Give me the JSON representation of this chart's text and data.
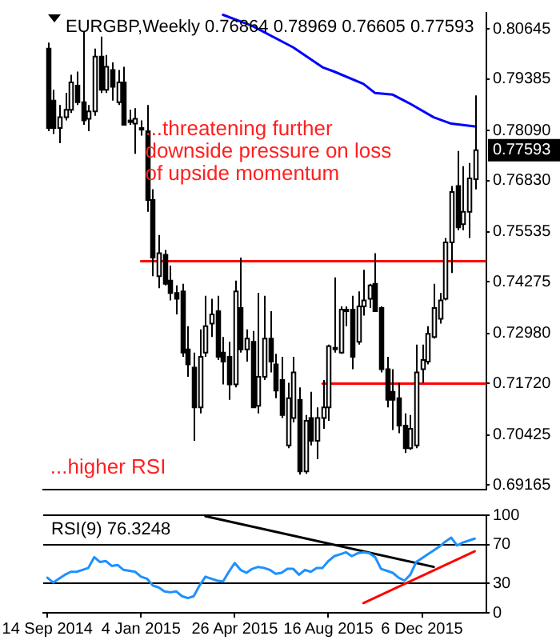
{
  "chart_data": [
    {
      "type": "candlestick",
      "title": "EURGBP,Weekly 0.76864 0.78969 0.76605 0.77593",
      "x": [
        "2014-09-14",
        "2014-09-21",
        "2014-09-28",
        "2014-10-05",
        "2014-10-12",
        "2014-10-19",
        "2014-10-26",
        "2014-11-02",
        "2014-11-09",
        "2014-11-16",
        "2014-11-23",
        "2014-11-30",
        "2014-12-07",
        "2014-12-14",
        "2014-12-21",
        "2014-12-28",
        "2015-01-04",
        "2015-01-11",
        "2015-01-18",
        "2015-01-25",
        "2015-02-01",
        "2015-02-08",
        "2015-02-15",
        "2015-02-22",
        "2015-03-01",
        "2015-03-08",
        "2015-03-15",
        "2015-03-22",
        "2015-03-29",
        "2015-04-05",
        "2015-04-12",
        "2015-04-19",
        "2015-04-26",
        "2015-05-03",
        "2015-05-10",
        "2015-05-17",
        "2015-05-24",
        "2015-05-31",
        "2015-06-07",
        "2015-06-14",
        "2015-06-21",
        "2015-06-28",
        "2015-07-05",
        "2015-07-12",
        "2015-07-19",
        "2015-07-26",
        "2015-08-02",
        "2015-08-09",
        "2015-08-16",
        "2015-08-23",
        "2015-08-30",
        "2015-09-06",
        "2015-09-13",
        "2015-09-20",
        "2015-09-27",
        "2015-10-04",
        "2015-10-11",
        "2015-10-18",
        "2015-10-25",
        "2015-11-01",
        "2015-11-08",
        "2015-11-15",
        "2015-11-22",
        "2015-11-29",
        "2015-12-06",
        "2015-12-13",
        "2015-12-20",
        "2015-12-27",
        "2016-01-03",
        "2016-01-10",
        "2016-01-17",
        "2016-01-24",
        "2016-01-31",
        "2016-02-07"
      ],
      "ohlc": [
        [
          0.8015,
          0.803,
          0.7807,
          0.7815
        ],
        [
          0.7884,
          0.7911,
          0.78,
          0.7815
        ],
        [
          0.7815,
          0.7873,
          0.7777,
          0.7842
        ],
        [
          0.7842,
          0.7903,
          0.7834,
          0.7861
        ],
        [
          0.7861,
          0.7949,
          0.7853,
          0.793
        ],
        [
          0.7922,
          0.7957,
          0.7873,
          0.788
        ],
        [
          0.788,
          0.8057,
          0.7823,
          0.7834
        ],
        [
          0.7838,
          0.7873,
          0.7807,
          0.7857
        ],
        [
          0.7857,
          0.8015,
          0.7846,
          0.7995
        ],
        [
          0.7995,
          0.8045,
          0.7903,
          0.7911
        ],
        [
          0.7911,
          0.7999,
          0.7903,
          0.7969
        ],
        [
          0.7961,
          0.798,
          0.7884,
          0.7919
        ],
        [
          0.788,
          0.7961,
          0.7873,
          0.793
        ],
        [
          0.793,
          0.7969,
          0.7823,
          0.7823
        ],
        [
          0.783,
          0.7861,
          0.7823,
          0.7834
        ],
        [
          0.7826,
          0.7865,
          0.775,
          0.7838
        ],
        [
          0.7815,
          0.7834,
          0.7796,
          0.7811
        ],
        [
          0.7807,
          0.7873,
          0.7604,
          0.7634
        ],
        [
          0.7634,
          0.7661,
          0.7442,
          0.7489
        ],
        [
          0.7442,
          0.7546,
          0.7412,
          0.75
        ],
        [
          0.7496,
          0.7508,
          0.7419,
          0.7423
        ],
        [
          0.7431,
          0.7469,
          0.7381,
          0.74
        ],
        [
          0.74,
          0.7419,
          0.7346,
          0.7385
        ],
        [
          0.7404,
          0.7423,
          0.7239,
          0.725
        ],
        [
          0.7258,
          0.7316,
          0.7189,
          0.722
        ],
        [
          0.7212,
          0.725,
          0.7028,
          0.7112
        ],
        [
          0.7112,
          0.7308,
          0.7097,
          0.7239
        ],
        [
          0.725,
          0.7393,
          0.7239,
          0.7316
        ],
        [
          0.7323,
          0.7385,
          0.7289,
          0.7346
        ],
        [
          0.7354,
          0.7393,
          0.7231,
          0.7239
        ],
        [
          0.725,
          0.7289,
          0.717,
          0.7227
        ],
        [
          0.7239,
          0.7277,
          0.7131,
          0.717
        ],
        [
          0.717,
          0.7431,
          0.7162,
          0.7404
        ],
        [
          0.7362,
          0.7489,
          0.725,
          0.7258
        ],
        [
          0.7258,
          0.7308,
          0.7227,
          0.7285
        ],
        [
          0.7277,
          0.7304,
          0.7112,
          0.7112
        ],
        [
          0.7116,
          0.74,
          0.7097,
          0.7189
        ],
        [
          0.7189,
          0.7393,
          0.7181,
          0.7285
        ],
        [
          0.7285,
          0.7354,
          0.72,
          0.7227
        ],
        [
          0.722,
          0.7247,
          0.7135,
          0.7154
        ],
        [
          0.7181,
          0.7239,
          0.7085,
          0.7093
        ],
        [
          0.7016,
          0.7174,
          0.7009,
          0.7135
        ],
        [
          0.7085,
          0.7239,
          0.7074,
          0.72
        ],
        [
          0.7131,
          0.7162,
          0.6943,
          0.6951
        ],
        [
          0.6951,
          0.7093,
          0.6945,
          0.7078
        ],
        [
          0.7085,
          0.7151,
          0.7016,
          0.7028
        ],
        [
          0.7028,
          0.7112,
          0.6982,
          0.7085
        ],
        [
          0.7085,
          0.7181,
          0.7058,
          0.7112
        ],
        [
          0.7112,
          0.727,
          0.7078,
          0.7266
        ],
        [
          0.7258,
          0.7439,
          0.725,
          0.7262
        ],
        [
          0.725,
          0.7366,
          0.7247,
          0.7358
        ],
        [
          0.7358,
          0.7366,
          0.7316,
          0.7354
        ],
        [
          0.7358,
          0.7393,
          0.7208,
          0.7239
        ],
        [
          0.7277,
          0.7404,
          0.727,
          0.7366
        ],
        [
          0.7366,
          0.7458,
          0.7343,
          0.7381
        ],
        [
          0.7385,
          0.7423,
          0.7362,
          0.7419
        ],
        [
          0.7423,
          0.75,
          0.7354,
          0.7354
        ],
        [
          0.7362,
          0.7366,
          0.72,
          0.7208
        ],
        [
          0.7208,
          0.7239,
          0.7112,
          0.7131
        ],
        [
          0.7151,
          0.7208,
          0.7055,
          0.7131
        ],
        [
          0.7135,
          0.7174,
          0.7047,
          0.7066
        ],
        [
          0.7066,
          0.7097,
          0.6997,
          0.7009
        ],
        [
          0.7009,
          0.7093,
          0.7005,
          0.7058
        ],
        [
          0.7016,
          0.727,
          0.7009,
          0.72
        ],
        [
          0.7208,
          0.727,
          0.7174,
          0.7231
        ],
        [
          0.7227,
          0.7316,
          0.722,
          0.7297
        ],
        [
          0.7289,
          0.7423,
          0.7285,
          0.7362
        ],
        [
          0.7335,
          0.74,
          0.7323,
          0.7381
        ],
        [
          0.7385,
          0.7538,
          0.7381,
          0.7527
        ],
        [
          0.7527,
          0.7669,
          0.745,
          0.7654
        ],
        [
          0.7669,
          0.7757,
          0.7558,
          0.7565
        ],
        [
          0.7573,
          0.7719,
          0.7558,
          0.7604
        ],
        [
          0.7604,
          0.7727,
          0.7538,
          0.7688
        ],
        [
          0.76864,
          0.78969,
          0.76605,
          0.77593
        ]
      ],
      "series": [
        {
          "type": "line",
          "color": "#0000ff",
          "x": [
            "2015-04-12",
            "2015-05-17",
            "2015-07-05",
            "2015-08-09",
            "2015-08-23",
            "2015-09-27",
            "2015-10-11",
            "2015-11-01",
            "2015-11-22",
            "2015-12-20",
            "2016-01-10",
            "2016-02-07"
          ],
          "values": [
            0.81,
            0.8072,
            0.8018,
            0.7968,
            0.7957,
            0.7926,
            0.7903,
            0.7899,
            0.7876,
            0.7842,
            0.7826,
            0.7819
          ]
        },
        {
          "type": "line",
          "color": "#ff0000",
          "x": [
            "2015-01-04",
            "2016-02-21"
          ],
          "values": [
            0.748,
            0.748
          ]
        },
        {
          "type": "line",
          "color": "#ff0000",
          "x": [
            "2015-08-09",
            "2016-02-21"
          ],
          "values": [
            0.7172,
            0.7172
          ]
        }
      ],
      "xlim": [
        "2014-09-09",
        "2016-02-21"
      ],
      "ylim": [
        0.6905,
        0.8105
      ],
      "yticks": [
        0.80645,
        0.79385,
        {
          "value": 0.7809,
          "label": "0.78090"
        },
        {
          "value": 0.7683,
          "label": "0.76830"
        },
        0.75535,
        0.74275,
        {
          "value": 0.7298,
          "label": "0.72980"
        },
        {
          "value": 0.7172,
          "label": "0.71720"
        },
        0.70425,
        0.69165
      ],
      "tick_labels": "y",
      "annotations": [
        "...threatening further downside pressure on loss of upside momentum",
        "...higher RSI",
        "0.77593"
      ]
    },
    {
      "type": "line",
      "title": "RSI(9) 76.3248",
      "x": [
        "2014-09-14",
        "2014-09-21",
        "2014-09-28",
        "2014-10-05",
        "2014-10-12",
        "2014-10-19",
        "2014-10-26",
        "2014-11-02",
        "2014-11-09",
        "2014-11-16",
        "2014-11-23",
        "2014-11-30",
        "2014-12-07",
        "2014-12-14",
        "2014-12-21",
        "2014-12-28",
        "2015-01-04",
        "2015-01-11",
        "2015-01-18",
        "2015-01-25",
        "2015-02-01",
        "2015-02-08",
        "2015-02-15",
        "2015-02-22",
        "2015-03-01",
        "2015-03-08",
        "2015-03-15",
        "2015-03-22",
        "2015-03-29",
        "2015-04-05",
        "2015-04-12",
        "2015-04-19",
        "2015-04-26",
        "2015-05-03",
        "2015-05-10",
        "2015-05-17",
        "2015-05-24",
        "2015-05-31",
        "2015-06-07",
        "2015-06-14",
        "2015-06-21",
        "2015-06-28",
        "2015-07-05",
        "2015-07-12",
        "2015-07-19",
        "2015-07-26",
        "2015-08-02",
        "2015-08-09",
        "2015-08-16",
        "2015-08-23",
        "2015-08-30",
        "2015-09-06",
        "2015-09-13",
        "2015-09-20",
        "2015-09-27",
        "2015-10-04",
        "2015-10-11",
        "2015-10-18",
        "2015-10-25",
        "2015-11-01",
        "2015-11-08",
        "2015-11-15",
        "2015-11-22",
        "2015-11-29",
        "2015-12-06",
        "2015-12-13",
        "2015-12-20",
        "2015-12-27",
        "2016-01-03",
        "2016-01-10",
        "2016-01-17",
        "2016-01-24",
        "2016-01-31",
        "2016-02-07"
      ],
      "series": [
        {
          "color": "#1e90ff",
          "values": [
            36,
            31,
            35,
            39,
            42,
            42,
            44,
            46,
            57,
            52,
            53,
            48,
            49,
            44,
            43,
            42,
            37,
            35,
            28,
            26,
            22,
            21,
            22,
            17,
            15,
            17,
            28,
            37,
            35,
            33,
            32,
            42,
            51,
            44,
            41,
            45,
            47,
            46,
            44,
            40,
            41,
            45,
            45,
            39,
            44,
            42,
            46,
            46,
            53,
            58,
            60,
            62,
            58,
            61,
            62,
            61,
            57,
            45,
            43,
            41,
            36,
            33,
            39,
            52,
            56,
            60,
            64,
            68,
            73,
            77,
            69,
            72,
            74,
            76
          ]
        },
        {
          "type": "line",
          "color": "#000000",
          "x": [
            "2015-03-22",
            "2015-12-20"
          ],
          "values": [
            99,
            47
          ]
        },
        {
          "type": "line",
          "color": "#ff0000",
          "x": [
            "2015-09-27",
            "2016-02-07"
          ],
          "values": [
            10,
            63
          ]
        }
      ],
      "xlim": [
        "2014-09-09",
        "2016-02-21"
      ],
      "ylim": [
        0,
        100
      ],
      "yticks": [
        100,
        70,
        30,
        0
      ],
      "xticks": [
        {
          "value": "2014-09-14",
          "label": "14 Sep 2014"
        },
        {
          "value": "2015-01-04",
          "label": "4 Jan 2015"
        },
        {
          "value": "2015-04-26",
          "label": "26 Apr 2015"
        },
        {
          "value": "2015-08-16",
          "label": "16 Aug 2015"
        },
        {
          "value": "2015-12-06",
          "label": "6 Dec 2015"
        }
      ],
      "grid": "y"
    }
  ]
}
